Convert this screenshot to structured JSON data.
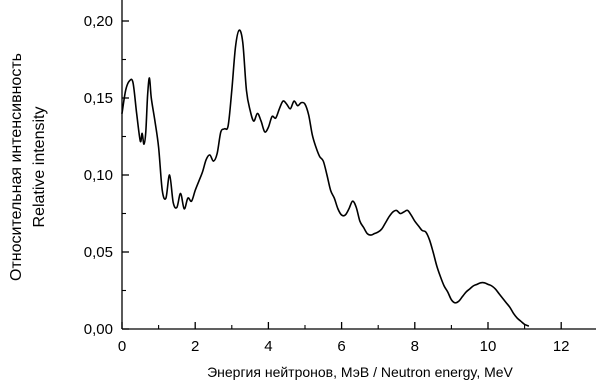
{
  "chart_data": {
    "type": "line",
    "title": "",
    "xlabel": "Энергия нейтронов, МэВ / Neutron energy, MeV",
    "ylabel": [
      "Относительная интенсивность",
      "Relative intensity"
    ],
    "xlim": [
      0,
      13
    ],
    "ylim": [
      0,
      0.21
    ],
    "xticks": [
      0,
      2,
      4,
      6,
      8,
      10,
      12
    ],
    "xtick_labels": [
      "0",
      "2",
      "4",
      "6",
      "8",
      "10",
      "12"
    ],
    "yticks": [
      0,
      0.05,
      0.1,
      0.15,
      0.2
    ],
    "ytick_labels": [
      "0,00",
      "0,05",
      "0,10",
      "0,15",
      "0,20"
    ],
    "grid": false,
    "legend": "none",
    "line_color": "#000000",
    "series": [
      {
        "x": [
          0.0,
          0.1,
          0.2,
          0.3,
          0.4,
          0.5,
          0.55,
          0.6,
          0.65,
          0.7,
          0.75,
          0.8,
          0.9,
          1.0,
          1.1,
          1.2,
          1.3,
          1.4,
          1.5,
          1.6,
          1.7,
          1.8,
          1.9,
          2.0,
          2.1,
          2.2,
          2.3,
          2.4,
          2.5,
          2.6,
          2.7,
          2.8,
          2.9,
          3.0,
          3.1,
          3.2,
          3.3,
          3.4,
          3.5,
          3.6,
          3.7,
          3.8,
          3.9,
          4.0,
          4.1,
          4.2,
          4.3,
          4.4,
          4.5,
          4.6,
          4.7,
          4.8,
          4.9,
          5.0,
          5.1,
          5.2,
          5.3,
          5.4,
          5.5,
          5.6,
          5.7,
          5.8,
          5.9,
          6.0,
          6.1,
          6.2,
          6.3,
          6.4,
          6.5,
          6.6,
          6.7,
          6.8,
          6.9,
          7.0,
          7.1,
          7.2,
          7.3,
          7.4,
          7.5,
          7.6,
          7.7,
          7.8,
          7.9,
          8.0,
          8.1,
          8.2,
          8.3,
          8.4,
          8.5,
          8.6,
          8.7,
          8.8,
          8.9,
          9.0,
          9.1,
          9.2,
          9.3,
          9.4,
          9.5,
          9.6,
          9.7,
          9.8,
          9.9,
          10.0,
          10.1,
          10.2,
          10.3,
          10.4,
          10.5,
          10.6,
          10.7,
          10.8,
          10.9,
          11.0,
          11.1
        ],
        "y": [
          0.14,
          0.155,
          0.161,
          0.16,
          0.14,
          0.122,
          0.127,
          0.12,
          0.128,
          0.152,
          0.163,
          0.15,
          0.135,
          0.118,
          0.09,
          0.085,
          0.1,
          0.082,
          0.079,
          0.088,
          0.078,
          0.085,
          0.083,
          0.09,
          0.096,
          0.102,
          0.11,
          0.113,
          0.109,
          0.114,
          0.128,
          0.13,
          0.132,
          0.155,
          0.183,
          0.194,
          0.186,
          0.155,
          0.142,
          0.135,
          0.14,
          0.135,
          0.128,
          0.131,
          0.138,
          0.137,
          0.143,
          0.148,
          0.146,
          0.143,
          0.148,
          0.145,
          0.147,
          0.146,
          0.139,
          0.126,
          0.118,
          0.112,
          0.109,
          0.1,
          0.09,
          0.085,
          0.078,
          0.074,
          0.074,
          0.078,
          0.083,
          0.079,
          0.07,
          0.066,
          0.062,
          0.061,
          0.062,
          0.063,
          0.065,
          0.069,
          0.073,
          0.076,
          0.077,
          0.075,
          0.076,
          0.077,
          0.074,
          0.07,
          0.067,
          0.064,
          0.063,
          0.058,
          0.05,
          0.041,
          0.034,
          0.028,
          0.024,
          0.019,
          0.017,
          0.018,
          0.021,
          0.024,
          0.026,
          0.028,
          0.029,
          0.03,
          0.03,
          0.029,
          0.028,
          0.026,
          0.023,
          0.02,
          0.017,
          0.014,
          0.01,
          0.007,
          0.005,
          0.003,
          0.002
        ]
      }
    ]
  }
}
